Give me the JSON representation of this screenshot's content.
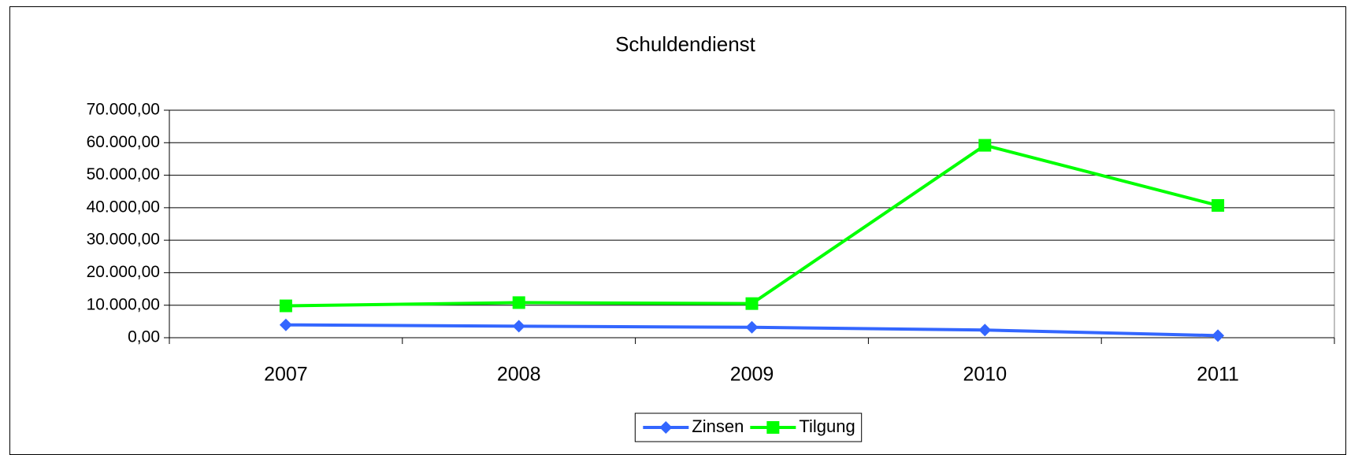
{
  "chart_data": {
    "type": "line",
    "title": "Schuldendienst",
    "categories": [
      "2007",
      "2008",
      "2009",
      "2010",
      "2011"
    ],
    "series": [
      {
        "name": "Zinsen",
        "color": "#3366ff",
        "marker": "diamond",
        "values": [
          3950,
          3550,
          3200,
          2350,
          650
        ]
      },
      {
        "name": "Tilgung",
        "color": "#00ff00",
        "marker": "square",
        "values": [
          9800,
          10800,
          10500,
          59200,
          40700
        ]
      }
    ],
    "ylim": [
      0,
      70000
    ],
    "yticks": [
      {
        "value": 0,
        "label": "0,00"
      },
      {
        "value": 10000,
        "label": "10.000,00"
      },
      {
        "value": 20000,
        "label": "20.000,00"
      },
      {
        "value": 30000,
        "label": "30.000,00"
      },
      {
        "value": 40000,
        "label": "40.000,00"
      },
      {
        "value": 50000,
        "label": "50.000,00"
      },
      {
        "value": 60000,
        "label": "60.000,00"
      },
      {
        "value": 70000,
        "label": "70.000,00"
      }
    ],
    "grid": true,
    "legend": "bottom"
  }
}
